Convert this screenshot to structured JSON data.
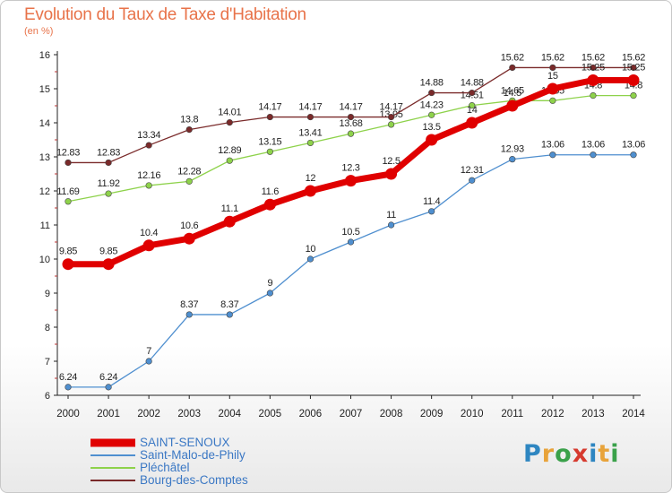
{
  "header": {
    "title": "Evolution du Taux de Taxe d'Habitation",
    "subtitle": "(en %)"
  },
  "logo": {
    "text": "Proxiti",
    "colors": [
      "#2e86c1",
      "#e8a33a",
      "#3aa14a",
      "#d63a2f",
      "#2e86c1",
      "#e8a33a",
      "#3aa14a"
    ]
  },
  "chart_data": {
    "type": "line",
    "title": "Evolution du Taux de Taxe d'Habitation",
    "subtitle": "(en %)",
    "xlabel": "",
    "ylabel": "",
    "x": [
      "2000",
      "2001",
      "2002",
      "2003",
      "2004",
      "2005",
      "2006",
      "2007",
      "2008",
      "2009",
      "2010",
      "2011",
      "2012",
      "2013",
      "2014"
    ],
    "ylim": [
      6,
      16
    ],
    "yticks": [
      "6",
      "7",
      "8",
      "9",
      "10",
      "11",
      "12",
      "13",
      "14",
      "15",
      "16"
    ],
    "grid": false,
    "legend": "bottom-left",
    "series": [
      {
        "name": "SAINT-SENOUX",
        "color": "#e00000",
        "emphasis": true,
        "values": [
          9.85,
          9.85,
          10.4,
          10.6,
          11.1,
          11.6,
          12,
          12.3,
          12.5,
          13.5,
          14,
          14.5,
          15,
          15.25,
          15.25
        ],
        "labels": [
          "9.85",
          "9.85",
          "10.4",
          "10.6",
          "11.1",
          "11.6",
          "12",
          "12.3",
          "12.5",
          "13.5",
          "14",
          "14.5",
          "15",
          "15.25",
          "15.25"
        ]
      },
      {
        "name": "Saint-Malo-de-Phily",
        "color": "#4f8fcf",
        "values": [
          6.24,
          6.24,
          7,
          8.37,
          8.37,
          9,
          10,
          10.5,
          11,
          11.4,
          12.31,
          12.93,
          13.06,
          13.06,
          13.06
        ],
        "labels": [
          "6.24",
          "6.24",
          "7",
          "8.37",
          "8.37",
          "9",
          "10",
          "10.5",
          "11",
          "11.4",
          "12.31",
          "12.93",
          "13.06",
          "13.06",
          "13.06"
        ]
      },
      {
        "name": "Pléchâtel",
        "color": "#8ed24b",
        "values": [
          11.69,
          11.92,
          12.16,
          12.28,
          12.89,
          13.15,
          13.41,
          13.68,
          13.95,
          14.23,
          14.51,
          14.65,
          14.65,
          14.8,
          14.8
        ],
        "labels": [
          "11.69",
          "11.92",
          "12.16",
          "12.28",
          "12.89",
          "13.15",
          "13.41",
          "13.68",
          "13.95",
          "14.23",
          "14.51",
          "14.65",
          "14.65",
          "14.8",
          "14.8"
        ]
      },
      {
        "name": "Bourg-des-Comptes",
        "color": "#7a2a2a",
        "values": [
          12.83,
          12.83,
          13.34,
          13.8,
          14.01,
          14.17,
          14.17,
          14.17,
          14.17,
          14.88,
          14.88,
          15.62,
          15.62,
          15.62,
          15.62
        ],
        "labels": [
          "12.83",
          "12.83",
          "13.34",
          "13.8",
          "14.01",
          "14.17",
          "14.17",
          "14.17",
          "14.17",
          "14.88",
          "14.88",
          "15.62",
          "15.62",
          "15.62",
          "15.62"
        ]
      }
    ]
  }
}
